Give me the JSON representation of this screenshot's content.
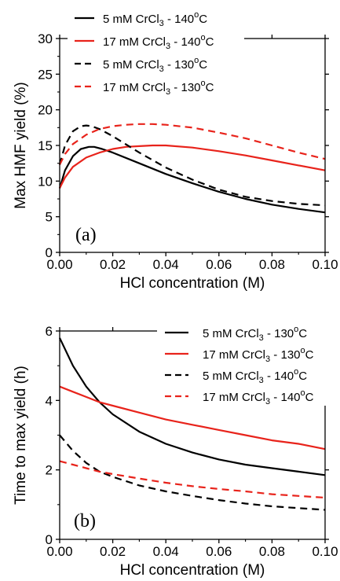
{
  "chart_data": [
    {
      "type": "line",
      "panel_label": "(a)",
      "xlabel": "HCl concentration (M)",
      "ylabel": "Max HMF yield (%)",
      "xlim": [
        0,
        0.1
      ],
      "ylim": [
        0,
        30
      ],
      "x_ticks": [
        "0.00",
        "0.02",
        "0.04",
        "0.06",
        "0.08",
        "0.10"
      ],
      "y_ticks": [
        "0",
        "5",
        "10",
        "15",
        "20",
        "25",
        "30"
      ],
      "grid": false,
      "legend_position": "top-left",
      "series": [
        {
          "name": "5 mM CrCl3 - 140°C",
          "name_parts": {
            "pre": "5 mM CrCl",
            "sub": "3",
            "mid": " - 140",
            "sup": "o",
            "post": "C"
          },
          "color": "#000000",
          "dash": "solid",
          "x": [
            0,
            0.002,
            0.005,
            0.008,
            0.011,
            0.013,
            0.016,
            0.02,
            0.03,
            0.04,
            0.05,
            0.06,
            0.07,
            0.08,
            0.09,
            0.1
          ],
          "y": [
            9.0,
            11.5,
            13.5,
            14.5,
            14.8,
            14.8,
            14.5,
            14.0,
            12.5,
            11.0,
            9.7,
            8.5,
            7.5,
            6.7,
            6.1,
            5.6
          ]
        },
        {
          "name": "17 mM CrCl3 - 140°C",
          "name_parts": {
            "pre": "17 mM CrCl",
            "sub": "3",
            "mid": " - 140",
            "sup": "o",
            "post": "C"
          },
          "color": "#e8231b",
          "dash": "solid",
          "x": [
            0,
            0.002,
            0.005,
            0.01,
            0.015,
            0.02,
            0.025,
            0.03,
            0.035,
            0.04,
            0.05,
            0.06,
            0.07,
            0.08,
            0.09,
            0.1
          ],
          "y": [
            9.0,
            10.5,
            12.0,
            13.3,
            14.0,
            14.5,
            14.8,
            14.9,
            15.0,
            15.0,
            14.7,
            14.2,
            13.6,
            12.9,
            12.2,
            11.5
          ]
        },
        {
          "name": "5 mM CrCl3 - 130°C",
          "name_parts": {
            "pre": "5 mM CrCl",
            "sub": "3",
            "mid": " - 130",
            "sup": "o",
            "post": "C"
          },
          "color": "#000000",
          "dash": "dashed",
          "x": [
            0,
            0.002,
            0.005,
            0.008,
            0.01,
            0.012,
            0.015,
            0.02,
            0.03,
            0.04,
            0.05,
            0.06,
            0.07,
            0.08,
            0.09,
            0.1
          ],
          "y": [
            12.3,
            15.0,
            17.0,
            17.7,
            17.8,
            17.7,
            17.3,
            16.3,
            14.0,
            11.9,
            10.2,
            8.8,
            7.8,
            7.2,
            6.8,
            6.6
          ]
        },
        {
          "name": "17 mM CrCl3 - 130°C",
          "name_parts": {
            "pre": "17 mM CrCl",
            "sub": "3",
            "mid": " - 130",
            "sup": "o",
            "post": "C"
          },
          "color": "#e8231b",
          "dash": "dashed",
          "x": [
            0,
            0.002,
            0.005,
            0.01,
            0.015,
            0.02,
            0.025,
            0.03,
            0.035,
            0.04,
            0.05,
            0.06,
            0.07,
            0.08,
            0.09,
            0.1
          ],
          "y": [
            12.3,
            13.8,
            15.2,
            16.5,
            17.3,
            17.7,
            17.9,
            18.0,
            18.0,
            17.9,
            17.5,
            16.8,
            16.0,
            15.0,
            14.0,
            13.1
          ]
        }
      ]
    },
    {
      "type": "line",
      "panel_label": "(b)",
      "xlabel": "HCl concentration (M)",
      "ylabel": "Time to max yield (h)",
      "xlim": [
        0,
        0.1
      ],
      "ylim": [
        0,
        6
      ],
      "x_ticks": [
        "0.00",
        "0.02",
        "0.04",
        "0.06",
        "0.08",
        "0.10"
      ],
      "y_ticks": [
        "0",
        "2",
        "4",
        "6"
      ],
      "grid": false,
      "legend_position": "top-right",
      "series": [
        {
          "name": "5 mM CrCl3 - 130°C",
          "name_parts": {
            "pre": "5 mM CrCl",
            "sub": "3",
            "mid": " - 130",
            "sup": "o",
            "post": "C"
          },
          "color": "#000000",
          "dash": "solid",
          "x": [
            0,
            0.005,
            0.01,
            0.015,
            0.02,
            0.03,
            0.04,
            0.05,
            0.06,
            0.07,
            0.08,
            0.09,
            0.1
          ],
          "y": [
            5.8,
            5.0,
            4.4,
            3.95,
            3.6,
            3.1,
            2.75,
            2.5,
            2.3,
            2.15,
            2.05,
            1.95,
            1.85
          ]
        },
        {
          "name": "17 mM CrCl3 - 130°C",
          "name_parts": {
            "pre": "17 mM CrCl",
            "sub": "3",
            "mid": " - 130",
            "sup": "o",
            "post": "C"
          },
          "color": "#e8231b",
          "dash": "solid",
          "x": [
            0,
            0.005,
            0.01,
            0.015,
            0.02,
            0.03,
            0.04,
            0.05,
            0.06,
            0.07,
            0.08,
            0.09,
            0.1
          ],
          "y": [
            4.4,
            4.25,
            4.1,
            3.95,
            3.85,
            3.65,
            3.45,
            3.3,
            3.15,
            3.0,
            2.85,
            2.75,
            2.6
          ]
        },
        {
          "name": "5 mM CrCl3 - 140°C",
          "name_parts": {
            "pre": "5 mM CrCl",
            "sub": "3",
            "mid": " - 140",
            "sup": "o",
            "post": "C"
          },
          "color": "#000000",
          "dash": "dashed",
          "x": [
            0,
            0.005,
            0.01,
            0.015,
            0.02,
            0.03,
            0.04,
            0.05,
            0.06,
            0.07,
            0.08,
            0.09,
            0.1
          ],
          "y": [
            3.0,
            2.55,
            2.2,
            1.95,
            1.8,
            1.55,
            1.38,
            1.25,
            1.13,
            1.03,
            0.95,
            0.9,
            0.85
          ]
        },
        {
          "name": "17 mM CrCl3 - 140°C",
          "name_parts": {
            "pre": "17 mM CrCl",
            "sub": "3",
            "mid": " - 140",
            "sup": "o",
            "post": "C"
          },
          "color": "#e8231b",
          "dash": "dashed",
          "x": [
            0,
            0.005,
            0.01,
            0.015,
            0.02,
            0.03,
            0.04,
            0.05,
            0.06,
            0.07,
            0.08,
            0.09,
            0.1
          ],
          "y": [
            2.25,
            2.15,
            2.05,
            1.95,
            1.88,
            1.75,
            1.63,
            1.53,
            1.45,
            1.38,
            1.3,
            1.25,
            1.2
          ]
        }
      ]
    }
  ]
}
